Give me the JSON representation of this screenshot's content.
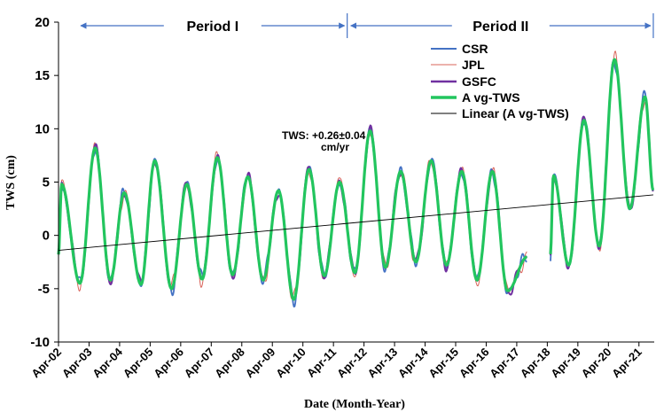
{
  "chart_data": {
    "type": "line",
    "title": "",
    "xlabel": "Date (Month-Year)",
    "ylabel": "TWS (cm)",
    "ylim": [
      -10,
      20
    ],
    "yticks": [
      -10,
      -5,
      0,
      5,
      10,
      15,
      20
    ],
    "xlim": [
      2002.25,
      2021.75
    ],
    "xticks": [
      {
        "label": "Apr-02",
        "x": 2002.25
      },
      {
        "label": "Apr-03",
        "x": 2003.25
      },
      {
        "label": "Apr-04",
        "x": 2004.25
      },
      {
        "label": "Apr-05",
        "x": 2005.25
      },
      {
        "label": "Apr-06",
        "x": 2006.25
      },
      {
        "label": "Apr-07",
        "x": 2007.25
      },
      {
        "label": "Apr-08",
        "x": 2008.25
      },
      {
        "label": "Apr-09",
        "x": 2009.25
      },
      {
        "label": "Apr-10",
        "x": 2010.25
      },
      {
        "label": "Apr-11",
        "x": 2011.25
      },
      {
        "label": "Apr-12",
        "x": 2012.25
      },
      {
        "label": "Apr-13",
        "x": 2013.25
      },
      {
        "label": "Apr-14",
        "x": 2014.25
      },
      {
        "label": "Apr-15",
        "x": 2015.25
      },
      {
        "label": "Apr-16",
        "x": 2016.25
      },
      {
        "label": "Apr-17",
        "x": 2017.25
      },
      {
        "label": "Apr-18",
        "x": 2018.25
      },
      {
        "label": "Apr-19",
        "x": 2019.25
      },
      {
        "label": "Apr-20",
        "x": 2020.25
      },
      {
        "label": "Apr-21",
        "x": 2021.25
      }
    ],
    "grid": false,
    "legend_position": "top-right",
    "periods": [
      {
        "label": "Period I",
        "x_start": 2002.25,
        "x_end": 2011.7
      },
      {
        "label": "Period II",
        "x_start": 2011.7,
        "x_end": 2021.72
      }
    ],
    "annotation": {
      "line1": "TWS: +0.26±0.04",
      "line2": "cm/yr",
      "x": 2011.6,
      "y": 8.2
    },
    "gap": [
      2017.6,
      2018.35
    ],
    "peaks": [
      [
        2002.35,
        4.8
      ],
      [
        2003.45,
        8.2
      ],
      [
        2004.4,
        4.0
      ],
      [
        2005.4,
        7.0
      ],
      [
        2006.45,
        4.8
      ],
      [
        2007.45,
        7.3
      ],
      [
        2008.45,
        5.5
      ],
      [
        2009.45,
        4.2
      ],
      [
        2010.45,
        6.2
      ],
      [
        2011.45,
        5.0
      ],
      [
        2012.45,
        9.8
      ],
      [
        2013.45,
        6.0
      ],
      [
        2014.45,
        7.0
      ],
      [
        2015.45,
        6.0
      ],
      [
        2016.45,
        6.0
      ],
      [
        2018.45,
        5.6
      ],
      [
        2019.45,
        10.8
      ],
      [
        2020.45,
        16.5
      ],
      [
        2021.45,
        13.0
      ]
    ],
    "troughs": [
      [
        2002.25,
        -1.8
      ],
      [
        2002.95,
        -4.5
      ],
      [
        2003.95,
        -4.2
      ],
      [
        2004.95,
        -4.6
      ],
      [
        2005.95,
        -5.0
      ],
      [
        2006.95,
        -4.1
      ],
      [
        2007.95,
        -3.7
      ],
      [
        2008.95,
        -4.2
      ],
      [
        2009.95,
        -6.0
      ],
      [
        2010.95,
        -3.8
      ],
      [
        2011.95,
        -3.5
      ],
      [
        2012.95,
        -3.0
      ],
      [
        2013.95,
        -2.5
      ],
      [
        2014.95,
        -2.8
      ],
      [
        2015.95,
        -4.2
      ],
      [
        2016.95,
        -5.2
      ],
      [
        2017.6,
        -2.0
      ],
      [
        2018.35,
        -1.8
      ],
      [
        2018.95,
        -2.8
      ],
      [
        2019.95,
        -1.0
      ],
      [
        2020.95,
        2.5
      ],
      [
        2021.72,
        4.2
      ]
    ],
    "series": [
      {
        "name": "CSR",
        "color": "#4472C4",
        "width": 1.8,
        "jitter": [
          -0.6,
          0.3,
          -0.3,
          0.5
        ]
      },
      {
        "name": "JPL",
        "color": "#D9645A",
        "width": 1.0,
        "jitter": [
          0.7,
          -0.4,
          0.5,
          -0.3
        ]
      },
      {
        "name": "GSFC",
        "color": "#7030A0",
        "width": 2.0,
        "jitter": [
          0.4,
          0.2,
          -0.5,
          0.3
        ]
      },
      {
        "name": "Avg-TWS",
        "color": "#22C55E",
        "width": 3.2,
        "jitter": [
          0,
          0,
          0,
          0
        ]
      }
    ],
    "trendline": {
      "name": "Linear (Avg-TWS)",
      "color": "#000000",
      "width": 0.9,
      "x": [
        2002.25,
        2021.72
      ],
      "y": [
        -1.4,
        3.8
      ]
    },
    "legend_labels": [
      "CSR",
      "JPL",
      "GSFC",
      "A vg-TWS",
      "Linear (A vg-TWS)"
    ]
  }
}
